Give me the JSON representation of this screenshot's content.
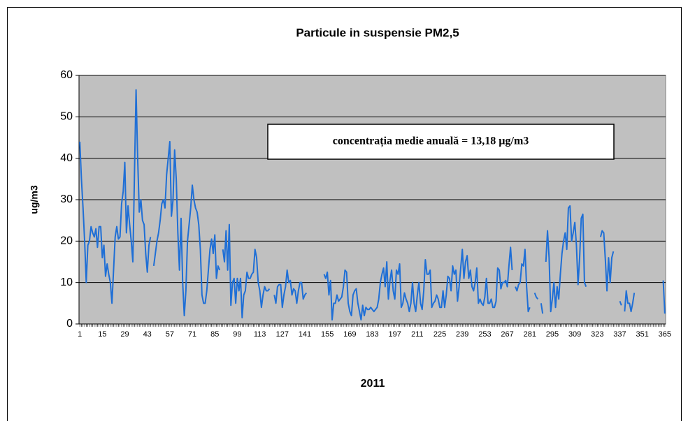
{
  "chart_data": {
    "type": "line",
    "title": "Particule in suspensie PM2,5",
    "ylabel": "ug/m3",
    "xlabel": "2011",
    "annotation": "concentrația medie anuală  = 13,18 µg/m3",
    "ylim": [
      0,
      60
    ],
    "yticks": [
      0,
      10,
      20,
      30,
      40,
      50,
      60
    ],
    "grid": true,
    "plot_background": "#c0c0c0",
    "categories": [
      "1",
      null,
      null,
      null,
      null,
      null,
      null,
      null,
      null,
      null,
      null,
      null,
      null,
      null,
      "15",
      null,
      null,
      null,
      null,
      null,
      null,
      null,
      null,
      null,
      null,
      null,
      null,
      null,
      "29",
      null,
      null,
      null,
      null,
      null,
      null,
      null,
      null,
      null,
      null,
      null,
      null,
      null,
      "43",
      null,
      null,
      null,
      null,
      null,
      null,
      null,
      null,
      null,
      null,
      null,
      null,
      null,
      "57",
      null,
      null,
      null,
      null,
      null,
      null,
      null,
      null,
      null,
      null,
      null,
      null,
      null,
      "71",
      null,
      null,
      null,
      null,
      null,
      null,
      null,
      null,
      null,
      null,
      null,
      null,
      null,
      "85",
      null,
      null,
      null,
      null,
      null,
      null,
      null,
      null,
      null,
      null,
      null,
      null,
      null,
      "99",
      null,
      null,
      null,
      null,
      null,
      null,
      null,
      null,
      null,
      null,
      null,
      null,
      null,
      "113",
      null,
      null,
      null,
      null,
      null,
      null,
      null,
      null,
      null,
      null,
      null,
      null,
      null,
      "127",
      null,
      null,
      null,
      null,
      null,
      null,
      null,
      null,
      null,
      null,
      null,
      null,
      null,
      "141",
      null,
      null,
      null,
      null,
      null,
      null,
      null,
      null,
      null,
      null,
      null,
      null,
      null,
      "155",
      null,
      null,
      null,
      null,
      null,
      null,
      null,
      null,
      null,
      null,
      null,
      null,
      null,
      "169",
      null,
      null,
      null,
      null,
      null,
      null,
      null,
      null,
      null,
      null,
      null,
      null,
      null,
      "183",
      null,
      null,
      null,
      null,
      null,
      null,
      null,
      null,
      null,
      null,
      null,
      null,
      null,
      "197",
      null,
      null,
      null,
      null,
      null,
      null,
      null,
      null,
      null,
      null,
      null,
      null,
      null,
      "211",
      null,
      null,
      null,
      null,
      null,
      null,
      null,
      null,
      null,
      null,
      null,
      null,
      null,
      "225",
      null,
      null,
      null,
      null,
      null,
      null,
      null,
      null,
      null,
      null,
      null,
      null,
      null,
      "239",
      null,
      null,
      null,
      null,
      null,
      null,
      null,
      null,
      null,
      null,
      null,
      null,
      null,
      "253",
      null,
      null,
      null,
      null,
      null,
      null,
      null,
      null,
      null,
      null,
      null,
      null,
      null,
      "267",
      null,
      null,
      null,
      null,
      null,
      null,
      null,
      null,
      null,
      null,
      null,
      null,
      null,
      "281",
      null,
      null,
      null,
      null,
      null,
      null,
      null,
      null,
      null,
      null,
      null,
      null,
      null,
      "295",
      null,
      null,
      null,
      null,
      null,
      null,
      null,
      null,
      null,
      null,
      null,
      null,
      null,
      "309",
      null,
      null,
      null,
      null,
      null,
      null,
      null,
      null,
      null,
      null,
      null,
      null,
      null,
      "323",
      null,
      null,
      null,
      null,
      null,
      null,
      null,
      null,
      null,
      null,
      null,
      null,
      null,
      "337",
      null,
      null,
      null,
      null,
      null,
      null,
      null,
      null,
      null,
      null,
      null,
      null,
      null,
      "351",
      null,
      null,
      null,
      null,
      null,
      null,
      null,
      null,
      null,
      null,
      null,
      null,
      null,
      "365"
    ],
    "series": [
      {
        "name": "PM2,5",
        "color": "#1f6fd6",
        "values": [
          44,
          35,
          28,
          20,
          10,
          19,
          20,
          23.5,
          22,
          21,
          23,
          18.5,
          23.5,
          23.5,
          16,
          19,
          11.5,
          14.5,
          12,
          10,
          5,
          13,
          21,
          23.5,
          20.5,
          21,
          29,
          32,
          39,
          22,
          28.5,
          24,
          20,
          15,
          36,
          56.5,
          40,
          27,
          30,
          25,
          24,
          17,
          12.5,
          19,
          21,
          null,
          14,
          17,
          20,
          22,
          25,
          29,
          30,
          28,
          36,
          40,
          44,
          26,
          30,
          42,
          35,
          22,
          13,
          25.5,
          10,
          2,
          8,
          20,
          24,
          28,
          33.5,
          30,
          28,
          27,
          24,
          18,
          7,
          5,
          5,
          8,
          13,
          18,
          20.5,
          17,
          21.5,
          11,
          14,
          13,
          null,
          18,
          15,
          22.5,
          13,
          24,
          4.5,
          10,
          11,
          5,
          11,
          8,
          11,
          1.5,
          7,
          8,
          12.5,
          11,
          11,
          12,
          12.5,
          18,
          16,
          10,
          8,
          4,
          7,
          9,
          8,
          8,
          8.5,
          null,
          null,
          7,
          5,
          9,
          9.5,
          9.5,
          4,
          7,
          9,
          13,
          10,
          10.5,
          7,
          8.5,
          8,
          5,
          8,
          10,
          10,
          6,
          7,
          7.5,
          null,
          null,
          null,
          null,
          null,
          null,
          null,
          null,
          null,
          null,
          12,
          11,
          12.5,
          7,
          10.5,
          1,
          5,
          5,
          7,
          5.5,
          6,
          6.5,
          9,
          13,
          12.5,
          5,
          3,
          2,
          7,
          8,
          8.5,
          5,
          3,
          1,
          4.5,
          2,
          4,
          3.5,
          3.5,
          4,
          3.5,
          3,
          3.5,
          4,
          6,
          10,
          12,
          13.5,
          9,
          15,
          6,
          10.5,
          13,
          8,
          6,
          13,
          12,
          14.5,
          4,
          5,
          7.5,
          6,
          5,
          3,
          5,
          10,
          5,
          3,
          7,
          10,
          5,
          3.5,
          8,
          15.5,
          12,
          12,
          13,
          4,
          5,
          5.5,
          7,
          6,
          4,
          4,
          8,
          4,
          7,
          11.5,
          11,
          8,
          14,
          12,
          13,
          5.5,
          9,
          13.5,
          18,
          11,
          15,
          16.5,
          11,
          13,
          9,
          8,
          10,
          13.5,
          5,
          6,
          5,
          4.5,
          6.5,
          11,
          5,
          5,
          6,
          4,
          4,
          5.5,
          13.5,
          13,
          8.5,
          10,
          10,
          10.5,
          9,
          14,
          18.5,
          13,
          null,
          9,
          8,
          9.5,
          10,
          14.5,
          14,
          18,
          9,
          3,
          4,
          null,
          null,
          7.5,
          6.5,
          6,
          null,
          5,
          2.5,
          null,
          15,
          22.5,
          16,
          3,
          6,
          10,
          4,
          9,
          6,
          12,
          17,
          20,
          22,
          18,
          28,
          28.5,
          20,
          22,
          24.5,
          19,
          9.5,
          16,
          25.5,
          26.5,
          10,
          9,
          null,
          null,
          null,
          null,
          null,
          null,
          null,
          null,
          21,
          22.5,
          22,
          15.5,
          8,
          16,
          10,
          16,
          17.5,
          null,
          null,
          null,
          5.5,
          4.5,
          null,
          3,
          8,
          5,
          5,
          3,
          5,
          7.5,
          null,
          null,
          null,
          null,
          null,
          null,
          null,
          null,
          null,
          null,
          null,
          null,
          null,
          null,
          null,
          null,
          null,
          10.5,
          2.5
        ]
      }
    ]
  }
}
